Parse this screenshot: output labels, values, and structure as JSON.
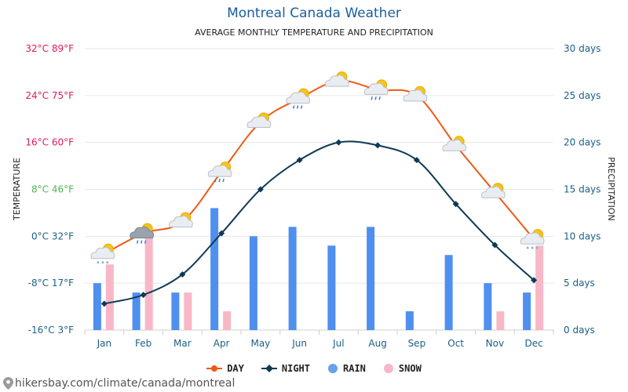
{
  "header": {
    "title": "Montreal Canada Weather",
    "subtitle": "AVERAGE MONTHLY TEMPERATURE AND PRECIPITATION"
  },
  "footer": {
    "url": "hikersbay.com/climate/canada/montreal"
  },
  "colors": {
    "day": "#ee5a15",
    "night": "#0e3a55",
    "rain": "#4f8ff0",
    "snow": "#f8b7c7",
    "grid": "#e6e6e6",
    "right_axis": "#1a5f86"
  },
  "chart_data": {
    "type": "line",
    "title": "AVERAGE MONTHLY TEMPERATURE AND PRECIPITATION",
    "categories": [
      "Jan",
      "Feb",
      "Mar",
      "Apr",
      "May",
      "Jun",
      "Jul",
      "Aug",
      "Sep",
      "Oct",
      "Nov",
      "Dec"
    ],
    "series": [
      {
        "name": "DAY",
        "type": "line",
        "axis": "left",
        "color": "#ee5a15",
        "values": [
          -3,
          0.5,
          2.5,
          11,
          19.5,
          23.5,
          26.5,
          25,
          24,
          15.5,
          7.5,
          -0.5
        ]
      },
      {
        "name": "NIGHT",
        "type": "line",
        "axis": "left",
        "color": "#0e3a55",
        "values": [
          -11.5,
          -10,
          -6.5,
          0.5,
          8,
          13,
          16,
          15.5,
          13,
          5.5,
          -1.5,
          -7.5
        ]
      },
      {
        "name": "RAIN",
        "type": "bar",
        "axis": "right",
        "color": "#4f8ff0",
        "values": [
          5,
          4,
          4,
          13,
          10,
          11,
          9,
          11,
          2,
          8,
          5,
          4
        ]
      },
      {
        "name": "SNOW",
        "type": "bar",
        "axis": "right",
        "color": "#f8b7c7",
        "values": [
          7,
          10,
          4,
          2,
          0,
          0,
          0,
          0,
          0,
          0,
          2,
          9
        ]
      }
    ],
    "weather_icons": [
      "snow",
      "rain",
      "partly-cloudy",
      "rain",
      "partly-cloudy",
      "rain",
      "partly-cloudy",
      "rain",
      "partly-cloudy",
      "partly-cloudy",
      "partly-cloudy",
      "snow"
    ],
    "left_axis": {
      "label": "TEMPERATURE",
      "range": [
        -16,
        32
      ],
      "ticks": [
        {
          "value": 32,
          "label": "32°C 89°F",
          "color": "#e0195a"
        },
        {
          "value": 24,
          "label": "24°C 75°F",
          "color": "#e0195a"
        },
        {
          "value": 16,
          "label": "16°C 60°F",
          "color": "#e0195a"
        },
        {
          "value": 8,
          "label": "8°C 46°F",
          "color": "#4cb84c"
        },
        {
          "value": 0,
          "label": "0°C 32°F",
          "color": "#1a5f86"
        },
        {
          "value": -8,
          "label": "-8°C 17°F",
          "color": "#1a5f86"
        },
        {
          "value": -16,
          "label": "-16°C 3°F",
          "color": "#1a5f86"
        }
      ]
    },
    "right_axis": {
      "label": "PRECIPITATION",
      "range": [
        0,
        30
      ],
      "ticks": [
        {
          "value": 30,
          "label": "30 days"
        },
        {
          "value": 25,
          "label": "25 days"
        },
        {
          "value": 20,
          "label": "20 days"
        },
        {
          "value": 15,
          "label": "15 days"
        },
        {
          "value": 10,
          "label": "10 days"
        },
        {
          "value": 5,
          "label": "5 days"
        },
        {
          "value": 0,
          "label": "0 days"
        }
      ]
    },
    "legend": [
      {
        "name": "DAY",
        "marker": "line-circle",
        "color": "#ee5a15"
      },
      {
        "name": "NIGHT",
        "marker": "line-diamond",
        "color": "#0e3a55"
      },
      {
        "name": "RAIN",
        "marker": "circle",
        "color": "#4f8ff0"
      },
      {
        "name": "SNOW",
        "marker": "circle",
        "color": "#f8b7c7"
      }
    ]
  }
}
